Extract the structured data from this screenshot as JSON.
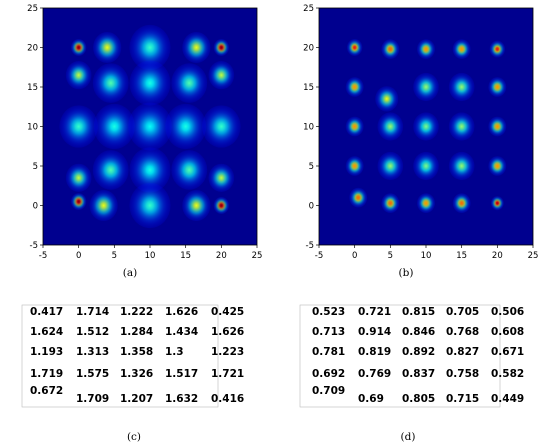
{
  "chart_data": [
    {
      "type": "heatmap",
      "panel": "(a)",
      "xlim": [
        -5,
        25
      ],
      "ylim": [
        -5,
        25
      ],
      "xticks": [
        -5,
        0,
        5,
        10,
        15,
        20,
        25
      ],
      "yticks": [
        -5,
        0,
        5,
        10,
        15,
        20,
        25
      ],
      "colormap": "jet",
      "spots": [
        {
          "x": 0,
          "y": 20,
          "intensity": 1.0,
          "size": 0.6
        },
        {
          "x": 4,
          "y": 20,
          "intensity": 0.55,
          "size": 1.1
        },
        {
          "x": 10,
          "y": 20,
          "intensity": 0.35,
          "size": 1.6
        },
        {
          "x": 16.5,
          "y": 20,
          "intensity": 0.55,
          "size": 1.1
        },
        {
          "x": 20,
          "y": 20,
          "intensity": 1.0,
          "size": 0.6
        },
        {
          "x": 0,
          "y": 16.5,
          "intensity": 0.5,
          "size": 1.0
        },
        {
          "x": 4.5,
          "y": 15.5,
          "intensity": 0.38,
          "size": 1.4
        },
        {
          "x": 10,
          "y": 15.5,
          "intensity": 0.32,
          "size": 1.6
        },
        {
          "x": 15.5,
          "y": 15.5,
          "intensity": 0.38,
          "size": 1.4
        },
        {
          "x": 20,
          "y": 16.5,
          "intensity": 0.5,
          "size": 1.0
        },
        {
          "x": 0,
          "y": 10,
          "intensity": 0.35,
          "size": 1.5
        },
        {
          "x": 5,
          "y": 10,
          "intensity": 0.32,
          "size": 1.6
        },
        {
          "x": 10,
          "y": 10,
          "intensity": 0.3,
          "size": 1.7
        },
        {
          "x": 15,
          "y": 10,
          "intensity": 0.32,
          "size": 1.6
        },
        {
          "x": 20,
          "y": 10,
          "intensity": 0.35,
          "size": 1.5
        },
        {
          "x": 0,
          "y": 3.5,
          "intensity": 0.5,
          "size": 1.0
        },
        {
          "x": 4.5,
          "y": 4.5,
          "intensity": 0.38,
          "size": 1.4
        },
        {
          "x": 10,
          "y": 4.5,
          "intensity": 0.32,
          "size": 1.6
        },
        {
          "x": 15.5,
          "y": 4.5,
          "intensity": 0.38,
          "size": 1.4
        },
        {
          "x": 20,
          "y": 3.5,
          "intensity": 0.5,
          "size": 1.0
        },
        {
          "x": 0,
          "y": 0.5,
          "intensity": 1.0,
          "size": 0.6
        },
        {
          "x": 3.5,
          "y": 0,
          "intensity": 0.55,
          "size": 1.1
        },
        {
          "x": 10,
          "y": 0,
          "intensity": 0.35,
          "size": 1.6
        },
        {
          "x": 16.5,
          "y": 0,
          "intensity": 0.55,
          "size": 1.1
        },
        {
          "x": 20,
          "y": 0,
          "intensity": 1.0,
          "size": 0.6
        }
      ]
    },
    {
      "type": "heatmap",
      "panel": "(b)",
      "xlim": [
        -5,
        25
      ],
      "ylim": [
        -5,
        25
      ],
      "xticks": [
        -5,
        0,
        5,
        10,
        15,
        20,
        25
      ],
      "yticks": [
        -5,
        0,
        5,
        10,
        15,
        20,
        25
      ],
      "colormap": "jet",
      "spots": [
        {
          "x": 0,
          "y": 20,
          "intensity": 0.85,
          "size": 0.6
        },
        {
          "x": 5,
          "y": 19.8,
          "intensity": 0.75,
          "size": 0.7
        },
        {
          "x": 10,
          "y": 19.8,
          "intensity": 0.7,
          "size": 0.7
        },
        {
          "x": 15,
          "y": 19.8,
          "intensity": 0.7,
          "size": 0.7
        },
        {
          "x": 20,
          "y": 19.8,
          "intensity": 0.85,
          "size": 0.6
        },
        {
          "x": 0,
          "y": 15,
          "intensity": 0.7,
          "size": 0.7
        },
        {
          "x": 4.5,
          "y": 13.5,
          "intensity": 0.55,
          "size": 0.9
        },
        {
          "x": 10,
          "y": 15,
          "intensity": 0.45,
          "size": 1.0
        },
        {
          "x": 15,
          "y": 15,
          "intensity": 0.45,
          "size": 1.0
        },
        {
          "x": 20,
          "y": 15,
          "intensity": 0.7,
          "size": 0.7
        },
        {
          "x": 0,
          "y": 10,
          "intensity": 0.7,
          "size": 0.7
        },
        {
          "x": 5,
          "y": 10,
          "intensity": 0.45,
          "size": 1.0
        },
        {
          "x": 10,
          "y": 10,
          "intensity": 0.42,
          "size": 1.0
        },
        {
          "x": 15,
          "y": 10,
          "intensity": 0.45,
          "size": 1.0
        },
        {
          "x": 20,
          "y": 10,
          "intensity": 0.7,
          "size": 0.7
        },
        {
          "x": 0,
          "y": 5,
          "intensity": 0.7,
          "size": 0.7
        },
        {
          "x": 5,
          "y": 5,
          "intensity": 0.45,
          "size": 1.0
        },
        {
          "x": 10,
          "y": 5,
          "intensity": 0.42,
          "size": 1.0
        },
        {
          "x": 15,
          "y": 5,
          "intensity": 0.45,
          "size": 1.0
        },
        {
          "x": 20,
          "y": 5,
          "intensity": 0.7,
          "size": 0.7
        },
        {
          "x": 0.5,
          "y": 1,
          "intensity": 0.75,
          "size": 0.7
        },
        {
          "x": 5,
          "y": 0.3,
          "intensity": 0.75,
          "size": 0.7
        },
        {
          "x": 10,
          "y": 0.3,
          "intensity": 0.7,
          "size": 0.7
        },
        {
          "x": 15,
          "y": 0.3,
          "intensity": 0.75,
          "size": 0.7
        },
        {
          "x": 20,
          "y": 0.3,
          "intensity": 0.95,
          "size": 0.5
        }
      ]
    },
    {
      "type": "table",
      "panel": "(c)",
      "rows": [
        [
          "0.417",
          "1.714",
          "1.222",
          "1.626",
          "0.425"
        ],
        [
          "1.624",
          "1.512",
          "1.284",
          "1.434",
          "1.626"
        ],
        [
          "1.193",
          "1.313",
          "1.358",
          "1.3",
          "1.223"
        ],
        [
          "1.719",
          "1.575",
          "1.326",
          "1.517",
          "1.721"
        ],
        [
          "0.672",
          "1.709",
          "1.207",
          "1.632",
          "0.416"
        ]
      ]
    },
    {
      "type": "table",
      "panel": "(d)",
      "rows": [
        [
          "0.523",
          "0.721",
          "0.815",
          "0.705",
          "0.506"
        ],
        [
          "0.713",
          "0.914",
          "0.846",
          "0.768",
          "0.608"
        ],
        [
          "0.781",
          "0.819",
          "0.892",
          "0.827",
          "0.671"
        ],
        [
          "0.692",
          "0.769",
          "0.837",
          "0.758",
          "0.582"
        ],
        [
          "0.709",
          "0.69",
          "0.805",
          "0.715",
          "0.449"
        ]
      ]
    }
  ]
}
